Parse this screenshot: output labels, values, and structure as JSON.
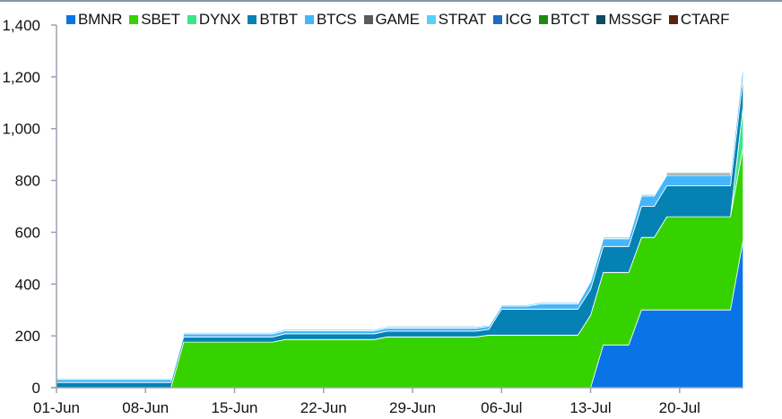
{
  "chart_data": {
    "type": "area",
    "stacked": true,
    "title": "",
    "xlabel": "",
    "ylabel": "",
    "ylim": [
      0,
      1400
    ],
    "yticks": [
      0,
      200,
      400,
      600,
      800,
      1000,
      1200,
      1400
    ],
    "ytick_labels": [
      "0",
      "200",
      "400",
      "600",
      "800",
      "1,000",
      "1,200",
      "1,400"
    ],
    "xtick_labels": [
      "01-Jun",
      "08-Jun",
      "15-Jun",
      "22-Jun",
      "29-Jun",
      "06-Jul",
      "13-Jul",
      "20-Jul"
    ],
    "grid": false,
    "legend_position": "top",
    "x": [
      "01-Jun",
      "02-Jun",
      "03-Jun",
      "04-Jun",
      "05-Jun",
      "06-Jun",
      "07-Jun",
      "08-Jun",
      "09-Jun",
      "10-Jun",
      "11-Jun",
      "12-Jun",
      "13-Jun",
      "14-Jun",
      "15-Jun",
      "16-Jun",
      "17-Jun",
      "18-Jun",
      "19-Jun",
      "20-Jun",
      "21-Jun",
      "22-Jun",
      "23-Jun",
      "24-Jun",
      "25-Jun",
      "26-Jun",
      "27-Jun",
      "28-Jun",
      "29-Jun",
      "30-Jun",
      "01-Jul",
      "02-Jul",
      "03-Jul",
      "04-Jul",
      "05-Jul",
      "06-Jul",
      "07-Jul",
      "08-Jul",
      "09-Jul",
      "10-Jul",
      "11-Jul",
      "12-Jul",
      "13-Jul",
      "14-Jul",
      "15-Jul",
      "16-Jul",
      "17-Jul",
      "18-Jul",
      "19-Jul",
      "20-Jul",
      "21-Jul",
      "22-Jul",
      "23-Jul",
      "24-Jul",
      "25-Jul"
    ],
    "series": [
      {
        "name": "BMNR",
        "color": "#0a74e6",
        "values": [
          0,
          0,
          0,
          0,
          0,
          0,
          0,
          0,
          0,
          0,
          0,
          0,
          0,
          0,
          0,
          0,
          0,
          0,
          0,
          0,
          0,
          0,
          0,
          0,
          0,
          0,
          0,
          0,
          0,
          0,
          0,
          0,
          0,
          0,
          0,
          0,
          0,
          0,
          0,
          0,
          0,
          0,
          0,
          165,
          165,
          165,
          300,
          300,
          300,
          300,
          300,
          300,
          300,
          300,
          570
        ]
      },
      {
        "name": "SBET",
        "color": "#36d200",
        "values": [
          0,
          0,
          0,
          0,
          0,
          0,
          0,
          0,
          0,
          0,
          176,
          176,
          176,
          176,
          176,
          176,
          176,
          176,
          186,
          186,
          186,
          186,
          186,
          186,
          186,
          186,
          196,
          196,
          196,
          196,
          196,
          196,
          196,
          196,
          203,
          203,
          203,
          203,
          203,
          203,
          203,
          203,
          280,
          280,
          280,
          280,
          280,
          280,
          360,
          360,
          360,
          360,
          360,
          360,
          360
        ]
      },
      {
        "name": "DYNX",
        "color": "#3de58c",
        "values": [
          0,
          0,
          0,
          0,
          0,
          0,
          0,
          0,
          0,
          0,
          0,
          0,
          0,
          0,
          0,
          0,
          0,
          0,
          0,
          0,
          0,
          0,
          0,
          0,
          0,
          0,
          0,
          0,
          0,
          0,
          0,
          0,
          0,
          0,
          0,
          0,
          0,
          0,
          0,
          0,
          0,
          0,
          0,
          0,
          0,
          0,
          0,
          0,
          0,
          0,
          0,
          0,
          0,
          0,
          160
        ]
      },
      {
        "name": "BTBT",
        "color": "#0581b3",
        "values": [
          20,
          20,
          20,
          20,
          20,
          20,
          20,
          20,
          20,
          20,
          20,
          20,
          20,
          20,
          20,
          20,
          20,
          20,
          22,
          22,
          22,
          22,
          22,
          22,
          22,
          22,
          22,
          22,
          22,
          22,
          22,
          22,
          22,
          22,
          22,
          100,
          100,
          100,
          100,
          100,
          100,
          100,
          100,
          100,
          100,
          100,
          120,
          120,
          120,
          120,
          120,
          120,
          120,
          120,
          110
        ]
      },
      {
        "name": "BTCS",
        "color": "#45b6fc",
        "values": [
          12,
          12,
          12,
          12,
          12,
          12,
          12,
          12,
          12,
          12,
          12,
          12,
          12,
          12,
          12,
          12,
          12,
          12,
          12,
          12,
          12,
          12,
          12,
          12,
          12,
          12,
          12,
          12,
          12,
          12,
          12,
          12,
          12,
          12,
          12,
          12,
          12,
          12,
          20,
          20,
          20,
          20,
          30,
          30,
          30,
          30,
          40,
          40,
          40,
          40,
          40,
          40,
          40,
          40,
          50
        ]
      },
      {
        "name": "GAME",
        "color": "#5b5b5b",
        "values": [
          0,
          0,
          0,
          0,
          0,
          0,
          0,
          0,
          0,
          0,
          0,
          0,
          0,
          0,
          0,
          0,
          0,
          0,
          0,
          0,
          0,
          0,
          0,
          0,
          0,
          0,
          0,
          0,
          0,
          0,
          0,
          0,
          0,
          0,
          0,
          0,
          0,
          0,
          0,
          0,
          0,
          0,
          0,
          0,
          0,
          0,
          0,
          0,
          6,
          6,
          6,
          6,
          6,
          6,
          6
        ]
      },
      {
        "name": "STRAT",
        "color": "#56d2fb",
        "values": [
          5,
          5,
          5,
          5,
          5,
          5,
          5,
          5,
          5,
          5,
          5,
          5,
          5,
          5,
          5,
          5,
          5,
          5,
          5,
          5,
          5,
          5,
          5,
          5,
          5,
          5,
          5,
          5,
          5,
          5,
          5,
          5,
          5,
          5,
          5,
          5,
          5,
          5,
          5,
          5,
          5,
          5,
          6,
          6,
          6,
          6,
          6,
          6,
          6,
          6,
          6,
          6,
          6,
          6,
          6
        ]
      },
      {
        "name": "ICG",
        "color": "#1f6bbd",
        "values": [
          3,
          3,
          3,
          3,
          3,
          3,
          3,
          3,
          3,
          3,
          3,
          3,
          3,
          3,
          3,
          3,
          3,
          3,
          3,
          3,
          3,
          3,
          3,
          3,
          3,
          3,
          3,
          3,
          3,
          3,
          3,
          3,
          3,
          3,
          3,
          3,
          3,
          3,
          3,
          3,
          3,
          3,
          3,
          3,
          3,
          3,
          3,
          3,
          3,
          3,
          3,
          3,
          3,
          3,
          3
        ]
      },
      {
        "name": "BTCT",
        "color": "#1f8a13",
        "values": [
          0,
          0,
          0,
          0,
          0,
          0,
          0,
          0,
          0,
          0,
          0,
          0,
          0,
          0,
          0,
          0,
          0,
          0,
          0,
          0,
          0,
          0,
          0,
          0,
          0,
          0,
          0,
          0,
          0,
          0,
          0,
          0,
          0,
          0,
          0,
          0,
          0,
          0,
          0,
          0,
          0,
          0,
          0,
          0,
          0,
          0,
          0,
          0,
          0,
          0,
          0,
          0,
          0,
          0,
          1
        ]
      },
      {
        "name": "MSSGF",
        "color": "#0d4a63",
        "values": [
          0,
          0,
          0,
          0,
          0,
          0,
          0,
          0,
          0,
          0,
          0,
          0,
          0,
          0,
          0,
          0,
          0,
          0,
          0,
          0,
          0,
          0,
          0,
          0,
          0,
          0,
          0,
          0,
          0,
          0,
          0,
          0,
          0,
          0,
          0,
          0,
          0,
          0,
          0,
          0,
          0,
          0,
          0,
          0,
          0,
          0,
          0,
          0,
          0,
          0,
          0,
          0,
          0,
          0,
          1
        ]
      },
      {
        "name": "CTARF",
        "color": "#5a2410",
        "values": [
          0,
          0,
          0,
          0,
          0,
          0,
          0,
          0,
          0,
          0,
          0,
          0,
          0,
          0,
          0,
          0,
          0,
          0,
          0,
          0,
          0,
          0,
          0,
          0,
          0,
          0,
          0,
          0,
          0,
          0,
          0,
          0,
          0,
          0,
          0,
          0,
          0,
          0,
          0,
          0,
          0,
          0,
          0,
          0,
          0,
          0,
          0,
          0,
          0,
          0,
          0,
          0,
          0,
          0,
          1
        ]
      }
    ]
  },
  "legend": {
    "items": [
      {
        "label": "BMNR",
        "color": "#0a74e6"
      },
      {
        "label": "SBET",
        "color": "#36d200"
      },
      {
        "label": "DYNX",
        "color": "#3de58c"
      },
      {
        "label": "BTBT",
        "color": "#0581b3"
      },
      {
        "label": "BTCS",
        "color": "#45b6fc"
      },
      {
        "label": "GAME",
        "color": "#5b5b5b"
      },
      {
        "label": "STRAT",
        "color": "#56d2fb"
      },
      {
        "label": "ICG",
        "color": "#1f6bbd"
      },
      {
        "label": "BTCT",
        "color": "#1f8a13"
      },
      {
        "label": "MSSGF",
        "color": "#0d4a63"
      },
      {
        "label": "CTARF",
        "color": "#5a2410"
      }
    ]
  }
}
